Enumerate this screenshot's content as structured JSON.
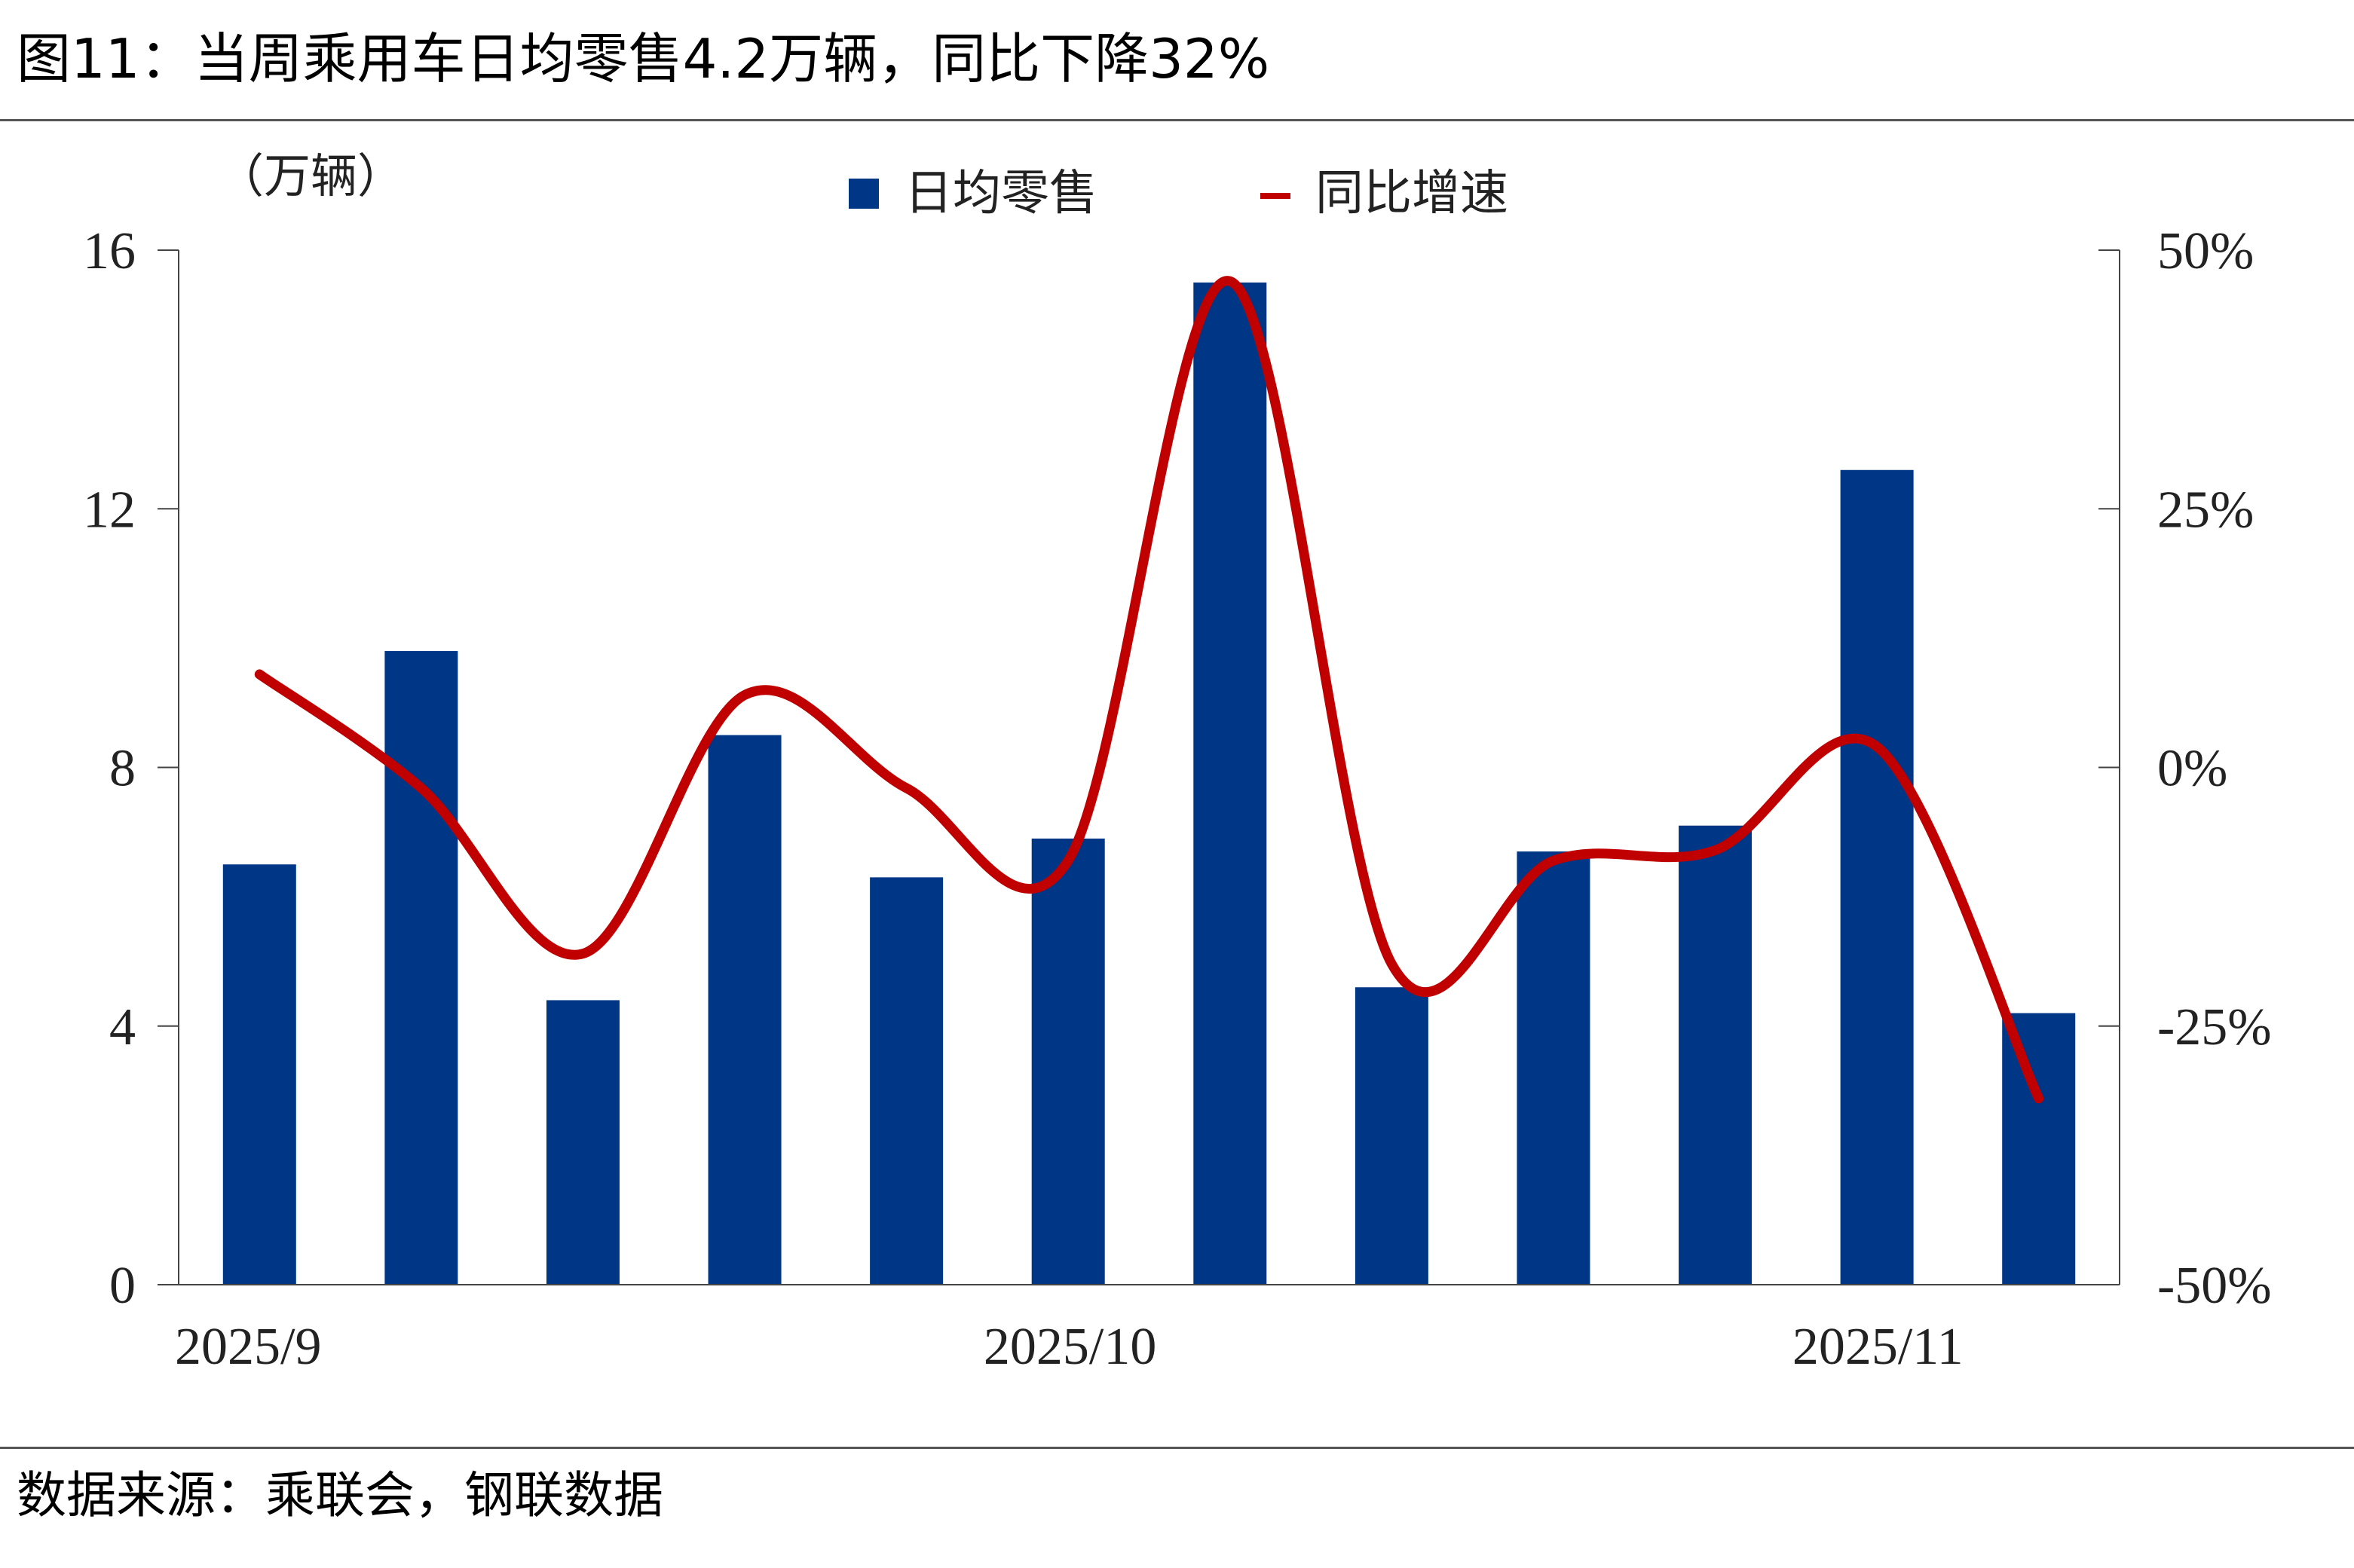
{
  "title": "图11：当周乘用车日均零售4.2万辆，同比下降32%",
  "source": "数据来源：乘联会，钢联数据",
  "colors": {
    "bar": "#003686",
    "line": "#c00000",
    "axis": "#444444"
  },
  "chart_data": {
    "type": "bar+line",
    "left_axis_unit": "（万辆）",
    "left_ylim": [
      0,
      16
    ],
    "left_ticks": [
      "0",
      "4",
      "8",
      "12",
      "16"
    ],
    "right_ylim": [
      -50,
      50
    ],
    "right_ticks": [
      "-50%",
      "-25%",
      "0%",
      "25%",
      "50%"
    ],
    "x_tick_labels": [
      {
        "label": "2025/9",
        "index": 0
      },
      {
        "label": "2025/10",
        "index": 5
      },
      {
        "label": "2025/11",
        "index": 10
      }
    ],
    "legend": {
      "bar": "日均零售",
      "line": "同比增速"
    },
    "bar_series": {
      "name": "日均零售",
      "values": [
        6.5,
        9.8,
        4.4,
        8.5,
        6.3,
        6.9,
        15.5,
        4.6,
        6.7,
        7.1,
        12.6,
        4.2
      ]
    },
    "line_series": {
      "name": "同比增速",
      "values": [
        9,
        -2,
        -18,
        7,
        -2,
        -9,
        47,
        -19,
        -9,
        -8,
        2,
        -32
      ]
    },
    "grid": false
  }
}
